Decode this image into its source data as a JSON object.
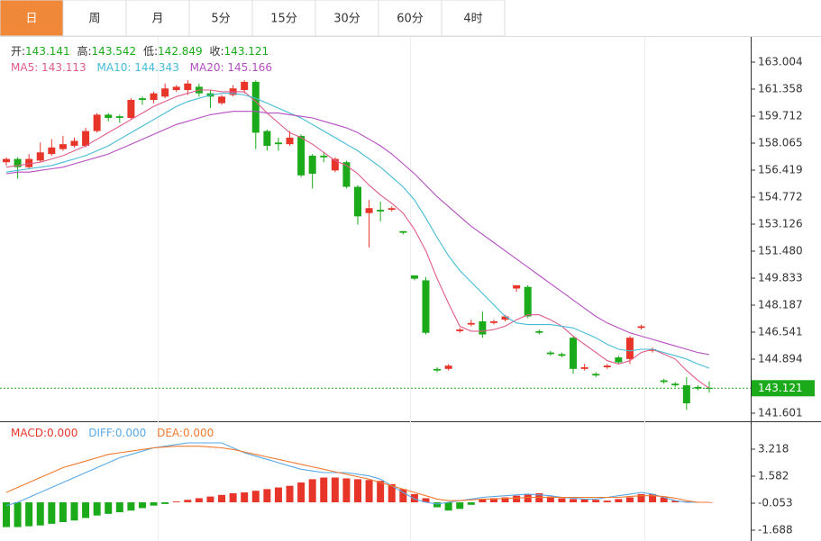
{
  "tabs": [
    "日",
    "周",
    "月",
    "5分",
    "15分",
    "30分",
    "60分",
    "4时"
  ],
  "active_tab": 0,
  "chart_data": [
    {
      "type": "candlestick",
      "ylim": [
        141.107,
        164.595
      ],
      "yticks": [
        163.004,
        161.358,
        159.712,
        158.065,
        156.419,
        154.772,
        153.126,
        {
          "value": 151.48,
          "label": "151.480"
        },
        149.833,
        148.187,
        146.541,
        144.894,
        141.601
      ],
      "header": [
        {
          "name": "开:",
          "value": "143.141"
        },
        {
          "name": "高:",
          "value": "143.542"
        },
        {
          "name": "低:",
          "value": "142.849"
        },
        {
          "name": "收:",
          "value": "143.121"
        }
      ],
      "up_color": "#e8352a",
      "down_color": "#1aaa1a",
      "last_price": {
        "value": 143.121,
        "label": "143.121"
      },
      "open": [
        156.9,
        157.1,
        156.6,
        157.0,
        157.4,
        157.7,
        157.9,
        157.9,
        158.8,
        159.8,
        159.7,
        159.6,
        160.8,
        160.7,
        160.9,
        161.3,
        161.3,
        161.5,
        161.1,
        160.5,
        161.0,
        161.3,
        161.8,
        158.8,
        158.1,
        158.0,
        158.5,
        157.3,
        157.3,
        156.4,
        156.9,
        155.4,
        153.8,
        154.0,
        154.0,
        152.7,
        150.0,
        149.7,
        144.3,
        144.3,
        146.6,
        147.0,
        147.2,
        147.1,
        147.3,
        149.2,
        149.3,
        146.6,
        145.3,
        145.2,
        146.2,
        144.3,
        144.0,
        144.4,
        145.0,
        144.9,
        146.8,
        145.4,
        143.6,
        143.4,
        143.3,
        143.2,
        143.141
      ],
      "high": [
        157.2,
        157.2,
        157.4,
        158.1,
        158.3,
        158.5,
        158.4,
        159.0,
        159.9,
        159.9,
        159.8,
        160.8,
        160.9,
        161.2,
        161.7,
        161.6,
        161.9,
        161.7,
        161.3,
        161.0,
        161.6,
        161.9,
        161.9,
        158.9,
        158.4,
        158.8,
        158.6,
        157.4,
        157.5,
        157.2,
        157.0,
        155.5,
        154.6,
        154.5,
        154.2,
        152.7,
        150.0,
        149.9,
        144.4,
        144.6,
        146.8,
        147.3,
        147.8,
        147.3,
        147.6,
        149.4,
        149.4,
        146.7,
        145.4,
        145.3,
        146.3,
        144.6,
        144.1,
        144.6,
        145.1,
        146.3,
        147.0,
        145.6,
        143.7,
        143.5,
        143.8,
        143.3,
        143.542
      ],
      "low": [
        156.7,
        155.9,
        156.5,
        156.9,
        157.3,
        157.6,
        157.8,
        157.8,
        158.7,
        159.4,
        159.3,
        159.5,
        160.4,
        160.5,
        160.8,
        161.2,
        161.0,
        160.9,
        160.2,
        160.4,
        160.9,
        161.1,
        157.7,
        157.6,
        157.6,
        157.9,
        156.0,
        155.3,
        156.9,
        156.3,
        155.3,
        153.1,
        151.7,
        153.3,
        153.9,
        152.5,
        149.7,
        146.4,
        144.1,
        144.2,
        146.5,
        146.9,
        146.2,
        147.0,
        147.2,
        149.0,
        147.4,
        146.4,
        145.1,
        145.0,
        144.0,
        144.2,
        143.8,
        144.3,
        144.6,
        144.6,
        146.7,
        145.3,
        143.4,
        143.2,
        141.8,
        143.0,
        142.849
      ],
      "close": [
        157.1,
        156.6,
        157.1,
        157.5,
        157.8,
        158.0,
        158.2,
        158.8,
        159.8,
        159.6,
        159.6,
        160.7,
        160.7,
        161.1,
        161.4,
        161.5,
        161.7,
        161.1,
        160.9,
        160.9,
        161.4,
        161.8,
        158.7,
        157.9,
        158.0,
        158.4,
        156.1,
        156.2,
        157.2,
        157.1,
        155.4,
        153.6,
        154.1,
        153.9,
        154.1,
        152.6,
        149.8,
        146.5,
        144.2,
        144.5,
        146.7,
        147.1,
        146.4,
        147.2,
        147.5,
        149.4,
        147.5,
        146.5,
        145.2,
        145.1,
        144.3,
        144.4,
        143.9,
        144.5,
        144.7,
        146.2,
        146.9,
        145.5,
        143.5,
        143.3,
        142.2,
        143.1,
        143.121
      ],
      "series": [
        {
          "name": "MA5",
          "label": "MA5: 143.113",
          "color": "#e05b8a",
          "values": [
            156.6,
            156.7,
            156.8,
            156.9,
            157.1,
            157.3,
            157.6,
            157.9,
            158.3,
            158.7,
            159.1,
            159.5,
            159.9,
            160.3,
            160.6,
            160.9,
            161.1,
            161.3,
            161.3,
            161.2,
            161.2,
            161.2,
            160.6,
            159.9,
            159.3,
            158.7,
            158.4,
            158.0,
            157.5,
            157.0,
            156.7,
            156.2,
            155.5,
            154.9,
            154.4,
            153.8,
            152.8,
            151.5,
            149.8,
            148.3,
            146.9,
            146.6,
            146.6,
            146.7,
            146.9,
            147.3,
            147.6,
            147.6,
            147.3,
            146.9,
            146.3,
            145.8,
            145.3,
            144.8,
            144.6,
            144.8,
            145.3,
            145.5,
            145.2,
            144.9,
            144.2,
            143.6,
            143.113
          ]
        },
        {
          "name": "MA10",
          "label": "MA10: 144.343",
          "color": "#45bcd6",
          "values": [
            156.3,
            156.4,
            156.5,
            156.6,
            156.7,
            156.9,
            157.1,
            157.3,
            157.6,
            157.9,
            158.3,
            158.7,
            159.1,
            159.5,
            159.9,
            160.3,
            160.6,
            160.8,
            161.0,
            161.1,
            161.1,
            161.0,
            160.8,
            160.5,
            160.2,
            159.9,
            159.6,
            159.2,
            158.8,
            158.4,
            158.0,
            157.6,
            157.1,
            156.6,
            156.0,
            155.4,
            154.6,
            153.5,
            152.3,
            151.2,
            150.3,
            149.6,
            148.9,
            148.2,
            147.5,
            147.1,
            147.0,
            147.0,
            147.0,
            146.9,
            146.8,
            146.5,
            146.2,
            145.8,
            145.5,
            145.4,
            145.5,
            145.5,
            145.3,
            145.1,
            144.9,
            144.6,
            144.343
          ]
        },
        {
          "name": "MA20",
          "label": "MA20: 145.166",
          "color": "#b44fc0",
          "values": [
            156.2,
            156.3,
            156.3,
            156.4,
            156.5,
            156.6,
            156.8,
            157.0,
            157.2,
            157.4,
            157.7,
            158.0,
            158.3,
            158.6,
            158.9,
            159.2,
            159.4,
            159.6,
            159.8,
            159.9,
            160.0,
            160.0,
            160.0,
            159.9,
            159.9,
            159.8,
            159.7,
            159.6,
            159.4,
            159.2,
            159.0,
            158.7,
            158.3,
            157.9,
            157.4,
            156.8,
            156.2,
            155.5,
            154.8,
            154.2,
            153.6,
            153.0,
            152.5,
            152.0,
            151.5,
            151.0,
            150.5,
            150.0,
            149.5,
            149.0,
            148.5,
            148.0,
            147.5,
            147.1,
            146.8,
            146.5,
            146.3,
            146.1,
            145.9,
            145.7,
            145.5,
            145.3,
            145.166
          ]
        }
      ]
    },
    {
      "type": "macd",
      "ylim": [
        -2.288,
        4.799
      ],
      "yticks": [
        3.218,
        1.582,
        -0.053,
        -1.688
      ],
      "up_color": "#e8352a",
      "down_color": "#1aaa1a",
      "histogram": {
        "name": "MACD",
        "label": "MACD:0.000",
        "color": "#e8352a",
        "values": [
          -1.5,
          -1.5,
          -1.45,
          -1.4,
          -1.3,
          -1.2,
          -1.1,
          -0.95,
          -0.8,
          -0.7,
          -0.6,
          -0.5,
          -0.35,
          -0.2,
          -0.1,
          0.05,
          0.15,
          0.25,
          0.35,
          0.45,
          0.55,
          0.6,
          0.7,
          0.8,
          0.9,
          1.0,
          1.2,
          1.4,
          1.5,
          1.5,
          1.45,
          1.4,
          1.35,
          1.3,
          1.1,
          0.8,
          0.5,
          0.25,
          -0.3,
          -0.5,
          -0.4,
          -0.15,
          0.2,
          0.25,
          0.3,
          0.4,
          0.5,
          0.55,
          0.35,
          0.25,
          0.2,
          0.2,
          0.15,
          0.1,
          0.2,
          0.3,
          0.5,
          0.5,
          0.3,
          0.1,
          0.05,
          0.0,
          0.0
        ]
      },
      "series": [
        {
          "name": "DIFF",
          "label": "DIFF:0.000",
          "color": "#5aa9e6",
          "values": [
            -0.2,
            0.0,
            0.3,
            0.6,
            0.9,
            1.2,
            1.5,
            1.8,
            2.1,
            2.4,
            2.7,
            2.9,
            3.1,
            3.3,
            3.4,
            3.5,
            3.6,
            3.6,
            3.6,
            3.6,
            3.3,
            3.0,
            2.8,
            2.6,
            2.4,
            2.2,
            2.0,
            1.9,
            1.8,
            1.8,
            1.8,
            1.7,
            1.6,
            1.4,
            1.0,
            0.6,
            0.2,
            0.0,
            -0.1,
            0.0,
            0.1,
            0.2,
            0.3,
            0.35,
            0.4,
            0.45,
            0.5,
            0.45,
            0.4,
            0.3,
            0.25,
            0.2,
            0.2,
            0.3,
            0.4,
            0.5,
            0.6,
            0.5,
            0.3,
            0.1,
            0.0,
            0.0,
            0.0
          ]
        },
        {
          "name": "DEA",
          "label": "DEA:0.000",
          "color": "#f07a30",
          "values": [
            0.6,
            0.9,
            1.2,
            1.5,
            1.8,
            2.1,
            2.3,
            2.5,
            2.7,
            2.9,
            3.0,
            3.1,
            3.2,
            3.3,
            3.35,
            3.4,
            3.4,
            3.4,
            3.35,
            3.3,
            3.2,
            3.05,
            2.9,
            2.75,
            2.6,
            2.45,
            2.3,
            2.15,
            2.0,
            1.85,
            1.7,
            1.55,
            1.4,
            1.2,
            1.0,
            0.8,
            0.6,
            0.4,
            0.2,
            0.1,
            0.1,
            0.15,
            0.2,
            0.2,
            0.25,
            0.25,
            0.3,
            0.3,
            0.3,
            0.3,
            0.3,
            0.3,
            0.3,
            0.3,
            0.3,
            0.35,
            0.4,
            0.4,
            0.35,
            0.25,
            0.1,
            0.0,
            0.0
          ]
        }
      ]
    }
  ]
}
